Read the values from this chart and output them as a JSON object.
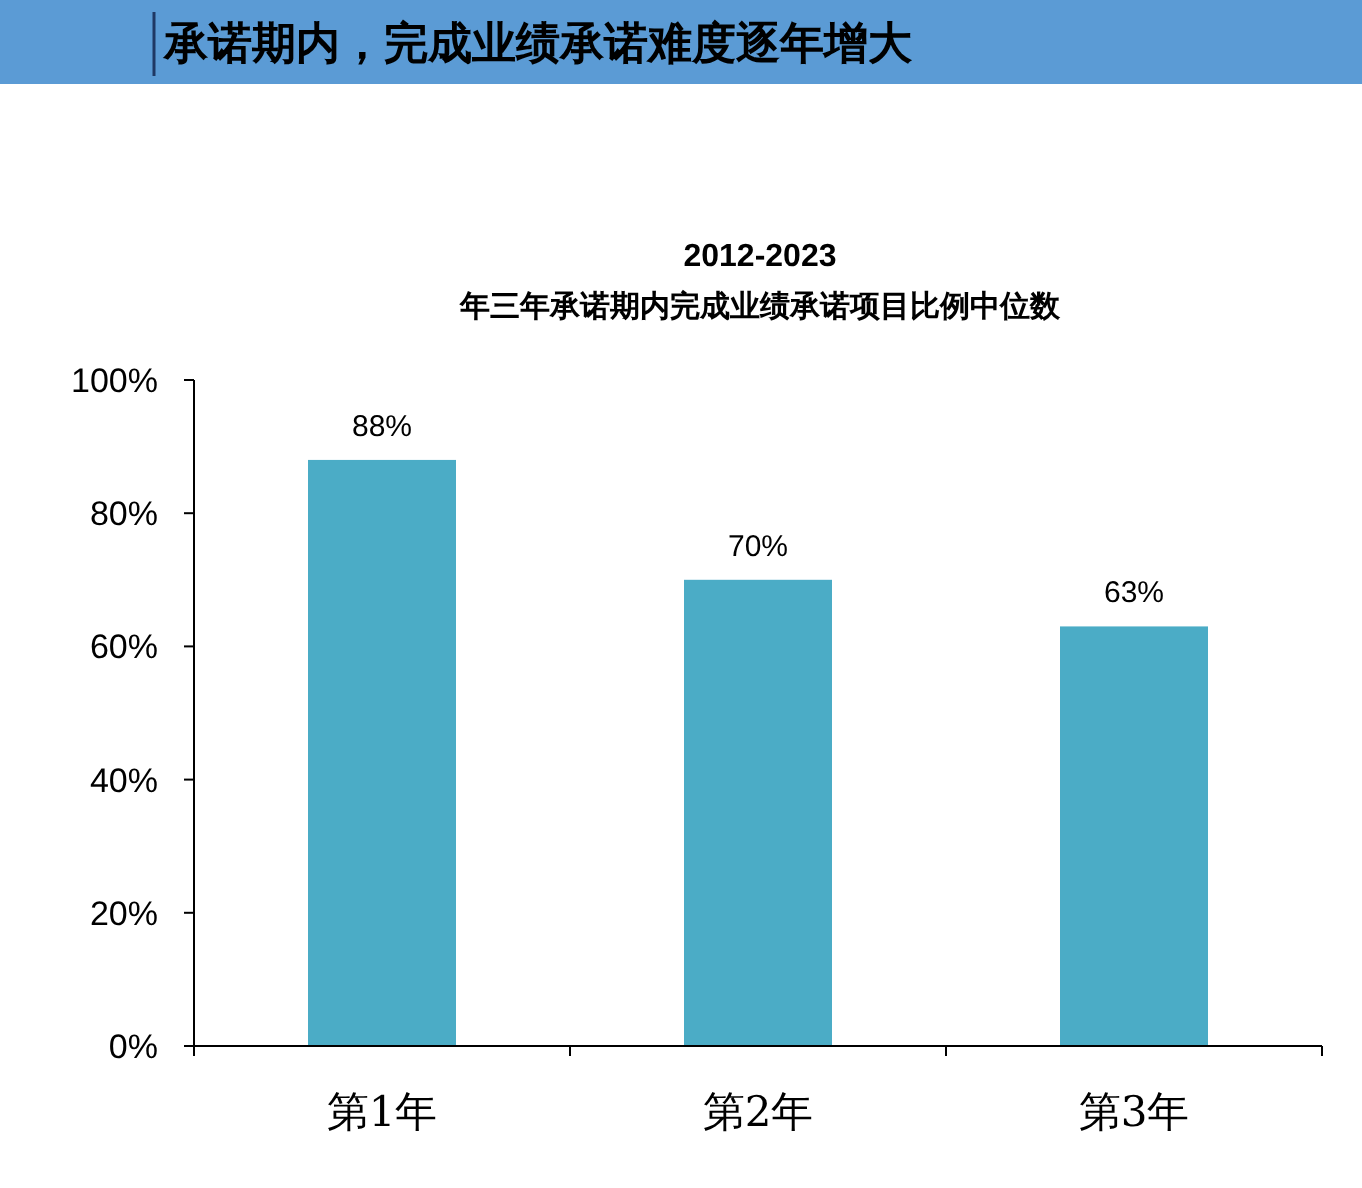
{
  "chart_data": {
    "type": "bar",
    "title": "2012-2023",
    "subtitle": "年三年承诺期内完成业绩承诺项目比例中位数",
    "annotations": [
      "承诺期内，完成业绩承诺难度逐年增大"
    ],
    "categories": [
      "第1年",
      "第2年",
      "第3年"
    ],
    "values": [
      88,
      70,
      63
    ],
    "value_labels": [
      "88%",
      "70%",
      "63%"
    ],
    "color": "#4bacc6",
    "ylim": [
      0,
      100
    ],
    "yticks": [
      {
        "value": 0,
        "label": "0%"
      },
      {
        "value": 20,
        "label": "20%"
      },
      {
        "value": 40,
        "label": "40%"
      },
      {
        "value": 60,
        "label": "60%"
      },
      {
        "value": 80,
        "label": "80%"
      },
      {
        "value": 100,
        "label": "100%"
      }
    ],
    "grid": false
  }
}
